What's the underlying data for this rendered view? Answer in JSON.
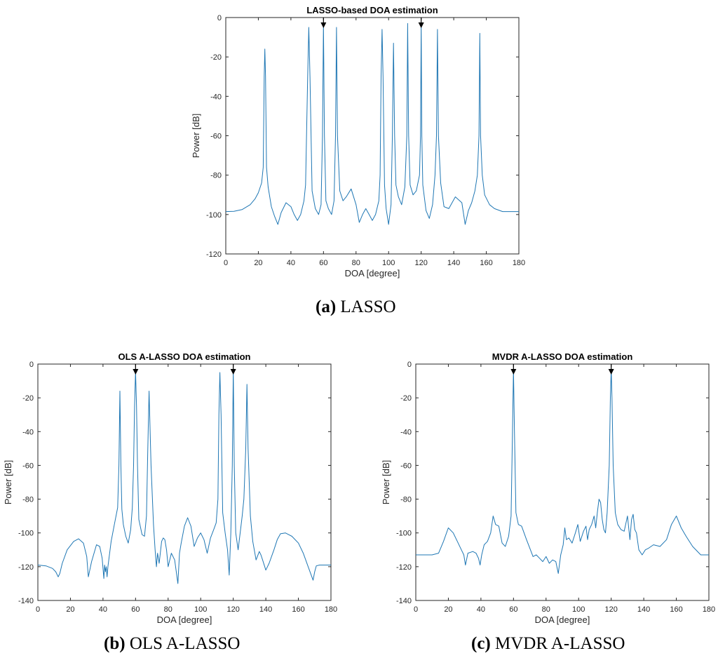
{
  "chart_data": [
    {
      "type": "line",
      "id": "a",
      "title": "LASSO-based DOA estimation",
      "caption_letter": "(a)",
      "caption_text": "LASSO",
      "xlabel": "DOA [degree]",
      "ylabel": "Power [dB]",
      "xlim": [
        0,
        180
      ],
      "ylim": [
        -120,
        0
      ],
      "xticks": [
        0,
        20,
        40,
        60,
        80,
        100,
        120,
        140,
        160,
        180
      ],
      "yticks": [
        0,
        -20,
        -40,
        -60,
        -80,
        -100,
        -120
      ],
      "grid": false,
      "line_color": "#1f77b4",
      "markers": [
        60,
        120
      ],
      "x": [
        0,
        5,
        10,
        15,
        18,
        20,
        22,
        23,
        23.6,
        24,
        24.4,
        25,
        26,
        28,
        30,
        32,
        34,
        37,
        40,
        42,
        44,
        46,
        48,
        49,
        50.3,
        51,
        51.7,
        53,
        55,
        57,
        58.5,
        59.4,
        60,
        60.6,
        61.5,
        63,
        65,
        66.5,
        67.4,
        68,
        68.6,
        70,
        72,
        74,
        77,
        80,
        82,
        84,
        86,
        88,
        90,
        92,
        94,
        94.8,
        95.4,
        96,
        96.6,
        97.5,
        98.5,
        100,
        101.5,
        102.3,
        103,
        103.7,
        104.5,
        106,
        108,
        110,
        111.2,
        111.7,
        112.3,
        113.2,
        115,
        117,
        119,
        119.6,
        120,
        120.4,
        121,
        123,
        125,
        127,
        128.5,
        129.4,
        130,
        130.6,
        132,
        134,
        137,
        141,
        145,
        147,
        149,
        151,
        153,
        154.5,
        155.5,
        156,
        156.5,
        157.5,
        159,
        162,
        165,
        170,
        175,
        180
      ],
      "y": [
        -98.5,
        -98.4,
        -97.5,
        -95,
        -92,
        -89,
        -84,
        -76,
        -30,
        -16,
        -30,
        -76,
        -86,
        -96,
        -101,
        -105,
        -99,
        -94,
        -96,
        -100,
        -103,
        -100,
        -93,
        -85,
        -30,
        -5,
        -30,
        -88,
        -97,
        -100,
        -95,
        -60,
        -3,
        -60,
        -93,
        -97,
        -100,
        -93,
        -60,
        -5,
        -60,
        -88,
        -93,
        -91,
        -87,
        -95,
        -104,
        -100,
        -97,
        -100,
        -103,
        -100,
        -93,
        -80,
        -30,
        -6,
        -30,
        -85,
        -97,
        -105,
        -95,
        -60,
        -13,
        -60,
        -85,
        -91,
        -95,
        -86,
        -60,
        -3,
        -60,
        -85,
        -90,
        -88,
        -80,
        -60,
        -3,
        -60,
        -85,
        -98,
        -102,
        -95,
        -80,
        -60,
        -6,
        -60,
        -84,
        -96,
        -97,
        -91,
        -94,
        -105,
        -98,
        -94,
        -88,
        -80,
        -60,
        -8,
        -60,
        -80,
        -90,
        -95,
        -97,
        -98.5,
        -98.5,
        -98.5
      ]
    },
    {
      "type": "line",
      "id": "b",
      "title": "OLS A-LASSO DOA estimation",
      "caption_letter": "(b)",
      "caption_text": "OLS A-LASSO",
      "xlabel": "DOA [degree]",
      "ylabel": "Power [dB]",
      "xlim": [
        0,
        180
      ],
      "ylim": [
        -140,
        0
      ],
      "xticks": [
        0,
        20,
        40,
        60,
        80,
        100,
        120,
        140,
        160,
        180
      ],
      "yticks": [
        0,
        -20,
        -40,
        -60,
        -80,
        -100,
        -120,
        -140
      ],
      "grid": false,
      "line_color": "#1f77b4",
      "markers": [
        60,
        120
      ],
      "x": [
        0,
        5,
        9,
        11,
        12.5,
        13.5,
        15,
        18,
        22,
        25,
        28,
        30,
        31,
        33,
        36,
        38,
        39.5,
        40.5,
        41,
        41.5,
        42,
        42.5,
        43,
        45,
        47,
        49,
        49.8,
        50.4,
        51,
        51.6,
        52.5,
        54,
        55.5,
        57,
        58,
        58.8,
        59.4,
        60,
        60.6,
        61.2,
        62,
        64,
        65.5,
        66.7,
        67.5,
        68.3,
        69.5,
        71,
        72,
        72.8,
        73.5,
        74.5,
        76,
        77,
        78,
        79,
        80,
        82,
        84,
        86,
        87,
        88,
        90,
        92,
        94,
        96,
        98,
        100,
        102,
        104,
        106,
        108,
        109.5,
        110.6,
        111.2,
        111.8,
        112.5,
        113.5,
        115,
        116.5,
        117.5,
        118.5,
        119.4,
        120,
        120.6,
        121.5,
        123,
        124.5,
        125.5,
        126.5,
        127.7,
        128.4,
        129.1,
        130.5,
        132,
        134,
        136,
        137,
        138,
        140,
        142,
        145,
        147,
        149,
        152,
        156,
        160,
        163,
        166,
        169,
        170,
        171,
        173,
        176,
        180
      ],
      "y": [
        -119,
        -119.5,
        -121,
        -123,
        -126,
        -124,
        -118,
        -110,
        -105,
        -103.5,
        -106,
        -114,
        -126,
        -117,
        -107,
        -108,
        -115,
        -127,
        -119,
        -123,
        -120,
        -126,
        -120,
        -105,
        -95,
        -85,
        -60,
        -16,
        -60,
        -86,
        -95,
        -102,
        -106,
        -98,
        -85,
        -60,
        -25,
        -4,
        -25,
        -60,
        -92,
        -101,
        -102,
        -90,
        -50,
        -16,
        -60,
        -95,
        -110,
        -120,
        -112,
        -118,
        -105,
        -103,
        -104,
        -110,
        -120,
        -112,
        -116,
        -130,
        -112,
        -106,
        -96,
        -91,
        -96,
        -108,
        -103,
        -100,
        -104,
        -112,
        -103,
        -98,
        -94,
        -80,
        -30,
        -5,
        -30,
        -88,
        -100,
        -110,
        -125,
        -100,
        -60,
        -3,
        -60,
        -100,
        -110,
        -98,
        -90,
        -80,
        -50,
        -12,
        -50,
        -90,
        -105,
        -116,
        -111,
        -113,
        -116,
        -122,
        -118,
        -110,
        -104,
        -100.5,
        -100,
        -102,
        -106,
        -112,
        -120,
        -128,
        -123,
        -119.5,
        -119,
        -119,
        -119
      ]
    },
    {
      "type": "line",
      "id": "c",
      "title": "MVDR A-LASSO DOA estimation",
      "caption_letter": "(c)",
      "caption_text": "MVDR A-LASSO",
      "xlabel": "DOA [degree]",
      "ylabel": "Power [dB]",
      "xlim": [
        0,
        180
      ],
      "ylim": [
        -140,
        0
      ],
      "xticks": [
        0,
        20,
        40,
        60,
        80,
        100,
        120,
        140,
        160,
        180
      ],
      "yticks": [
        0,
        -20,
        -40,
        -60,
        -80,
        -100,
        -120,
        -140
      ],
      "grid": false,
      "line_color": "#1f77b4",
      "markers": [
        60,
        120
      ],
      "x": [
        0,
        5,
        10,
        14,
        17,
        20,
        23,
        26,
        28,
        29.5,
        30.5,
        32,
        35,
        37,
        38.5,
        39.5,
        40.5,
        42,
        44,
        46,
        47.5,
        49,
        51,
        53,
        55,
        57,
        58.5,
        59.4,
        60,
        60.6,
        61.5,
        63,
        65,
        66.5,
        68,
        70,
        72,
        74,
        76,
        78,
        80,
        82,
        84,
        86,
        87.5,
        89,
        90.5,
        91.5,
        92.5,
        94,
        96,
        98,
        99.5,
        101,
        103,
        104.5,
        105.5,
        106.5,
        108,
        109.5,
        110.5,
        111.5,
        112.5,
        113.5,
        114.5,
        115.5,
        116.5,
        117.5,
        118.8,
        119.5,
        120,
        120.5,
        121.2,
        122.5,
        124,
        126,
        128,
        130,
        131.5,
        132.5,
        133.5,
        134.5,
        135.5,
        137,
        139,
        141,
        143,
        146,
        150,
        154,
        157,
        160,
        163,
        166,
        170,
        175,
        180
      ],
      "y": [
        -113,
        -113,
        -113,
        -112,
        -105,
        -97,
        -100,
        -106,
        -110,
        -113,
        -119,
        -112,
        -111,
        -112,
        -115,
        -119,
        -113,
        -107,
        -105,
        -100,
        -90,
        -95,
        -96,
        -106,
        -108,
        -102,
        -90,
        -40,
        -3,
        -40,
        -88,
        -95,
        -96,
        -100,
        -104,
        -109,
        -114,
        -113,
        -115,
        -117,
        -114,
        -118,
        -116,
        -117,
        -124,
        -113,
        -107,
        -97,
        -104,
        -103,
        -106,
        -100,
        -95,
        -105,
        -99,
        -96,
        -104,
        -98,
        -95,
        -90,
        -97,
        -88,
        -80,
        -82,
        -92,
        -98,
        -100,
        -88,
        -60,
        -20,
        -3,
        -20,
        -60,
        -88,
        -95,
        -98,
        -99,
        -90,
        -104,
        -92,
        -89,
        -98,
        -100,
        -110,
        -113,
        -110,
        -109,
        -107,
        -108,
        -104,
        -95,
        -90,
        -97,
        -102,
        -108,
        -113,
        -113
      ]
    }
  ]
}
